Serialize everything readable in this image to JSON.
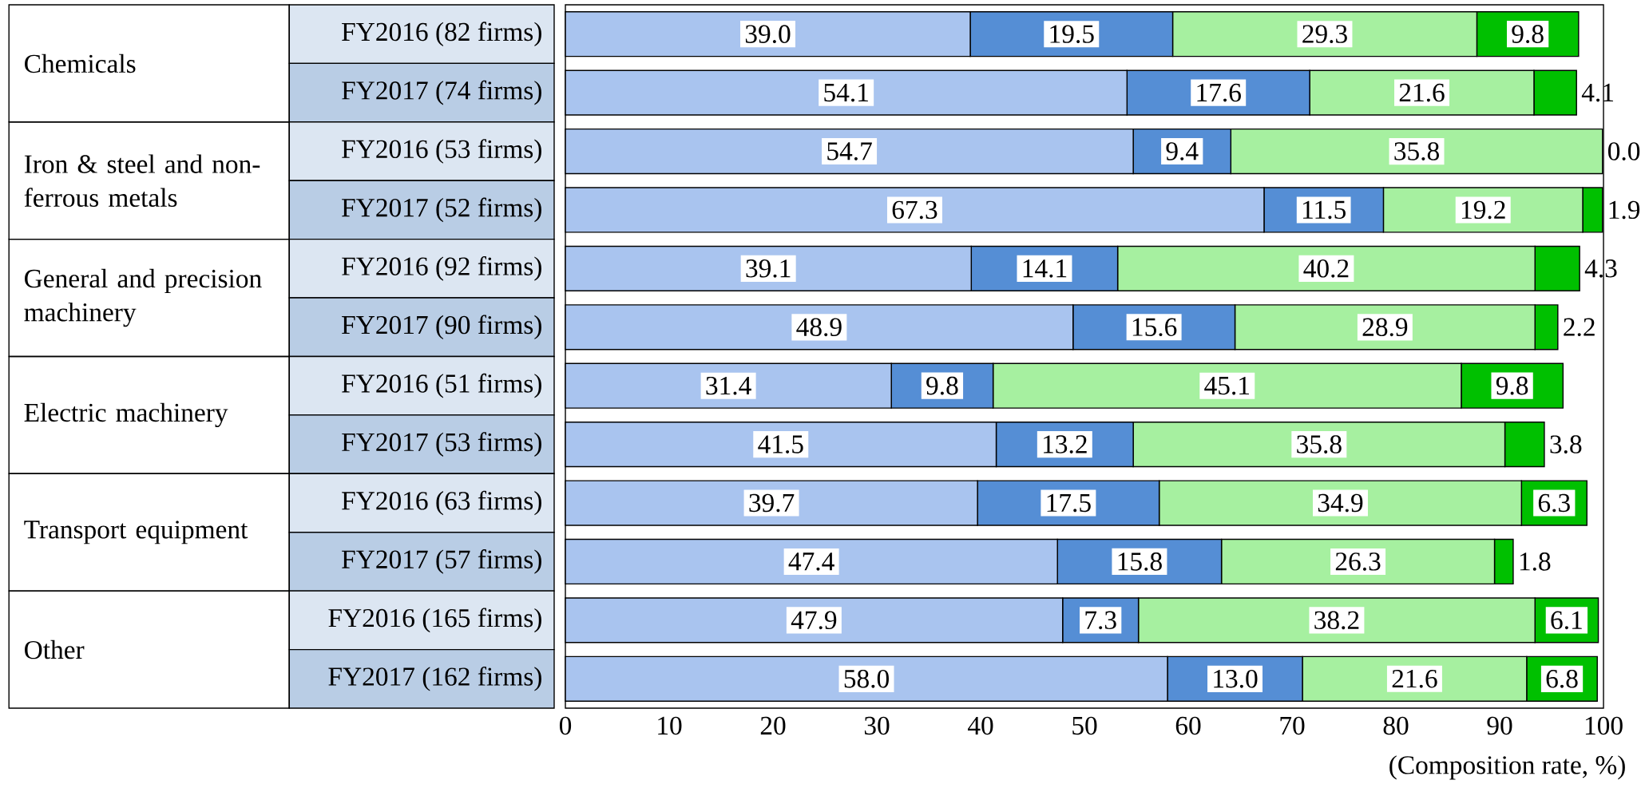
{
  "chart_data": {
    "type": "bar",
    "orientation": "horizontal",
    "stacked": true,
    "xlabel": "(Composition rate, %)",
    "categories": [
      "FY2016 (82 firms)",
      "FY2017 (74 firms)",
      "FY2016 (53 firms)",
      "FY2017 (52 firms)",
      "FY2016 (92 firms)",
      "FY2017 (90 firms)",
      "FY2016 (51 firms)",
      "FY2017 (53 firms)",
      "FY2016 (63 firms)",
      "FY2017 (57 firms)",
      "FY2016 (165 firms)",
      "FY2017 (162 firms)"
    ],
    "annotations": [
      "Chemicals",
      "Iron & steel and non-ferrous metals",
      "General and precision machinery",
      "Electric machinery",
      "Transport equipment",
      "Other"
    ],
    "series": [
      {
        "color": "#a9c4ef",
        "values": [
          39.0,
          54.1,
          54.7,
          67.3,
          39.1,
          48.9,
          31.4,
          41.5,
          39.7,
          47.4,
          47.9,
          58.0
        ],
        "value_labels": [
          "39.0",
          "54.1",
          "54.7",
          "67.3",
          "39.1",
          "48.9",
          "31.4",
          "41.5",
          "39.7",
          "47.4",
          "47.9",
          "58.0"
        ]
      },
      {
        "color": "#558ed5",
        "values": [
          19.5,
          17.6,
          9.4,
          11.5,
          14.1,
          15.6,
          9.8,
          13.2,
          17.5,
          15.8,
          7.3,
          13.0
        ],
        "value_labels": [
          "19.5",
          "17.6",
          "9.4",
          "11.5",
          "14.1",
          "15.6",
          "9.8",
          "13.2",
          "17.5",
          "15.8",
          "7.3",
          "13.0"
        ]
      },
      {
        "color": "#a6f0a0",
        "values": [
          29.3,
          21.6,
          35.8,
          19.2,
          40.2,
          28.9,
          45.1,
          35.8,
          34.9,
          26.3,
          38.2,
          21.6
        ],
        "value_labels": [
          "29.3",
          "21.6",
          "35.8",
          "19.2",
          "40.2",
          "28.9",
          "45.1",
          "35.8",
          "34.9",
          "26.3",
          "38.2",
          "21.6"
        ]
      },
      {
        "color": "#00c000",
        "values": [
          9.8,
          4.1,
          0.0,
          1.9,
          4.3,
          2.2,
          9.8,
          3.8,
          6.3,
          1.8,
          6.1,
          6.8
        ],
        "value_labels": [
          "9.8",
          "4.1",
          "0.0",
          "1.9",
          "4.3",
          "2.2",
          "9.8",
          "3.8",
          "6.3",
          "1.8",
          "6.1",
          "6.8"
        ]
      }
    ],
    "xlim": [
      0,
      100
    ],
    "xticks": [
      0,
      10,
      20,
      30,
      40,
      50,
      60,
      70,
      80,
      90,
      100
    ]
  }
}
